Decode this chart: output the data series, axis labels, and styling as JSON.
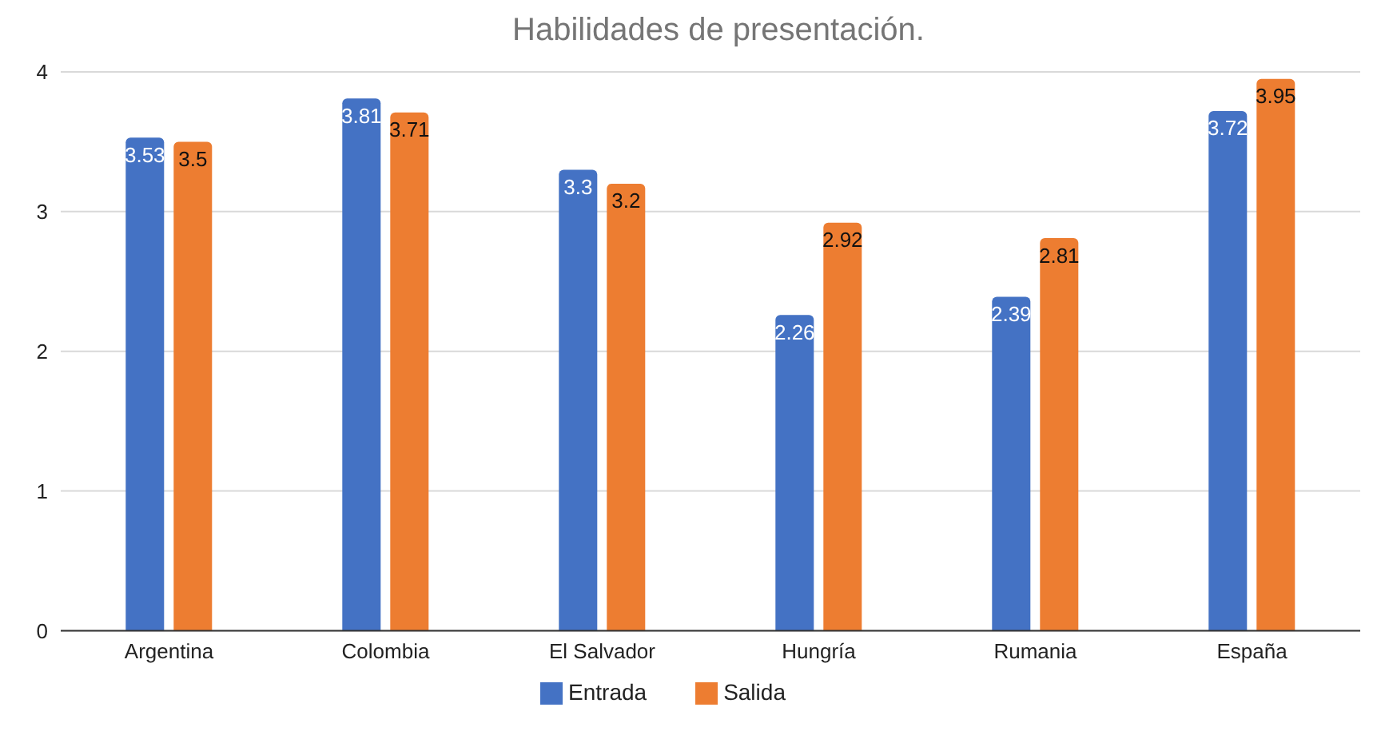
{
  "chart_data": {
    "type": "bar",
    "title": "Habilidades de presentación.",
    "categories": [
      "Argentina",
      "Colombia",
      "El Salvador",
      "Hungría",
      "Rumania",
      "España"
    ],
    "series": [
      {
        "name": "Entrada",
        "color": "#4472c4",
        "values": [
          3.53,
          3.81,
          3.3,
          2.26,
          2.39,
          3.72
        ]
      },
      {
        "name": "Salida",
        "color": "#ed7d31",
        "values": [
          3.5,
          3.71,
          3.2,
          2.92,
          2.81,
          3.95
        ]
      }
    ],
    "ylim": [
      0,
      4
    ],
    "yticks": [
      0,
      1,
      2,
      3,
      4
    ],
    "grid": "y",
    "legend": "bottom",
    "data_labels": true
  }
}
